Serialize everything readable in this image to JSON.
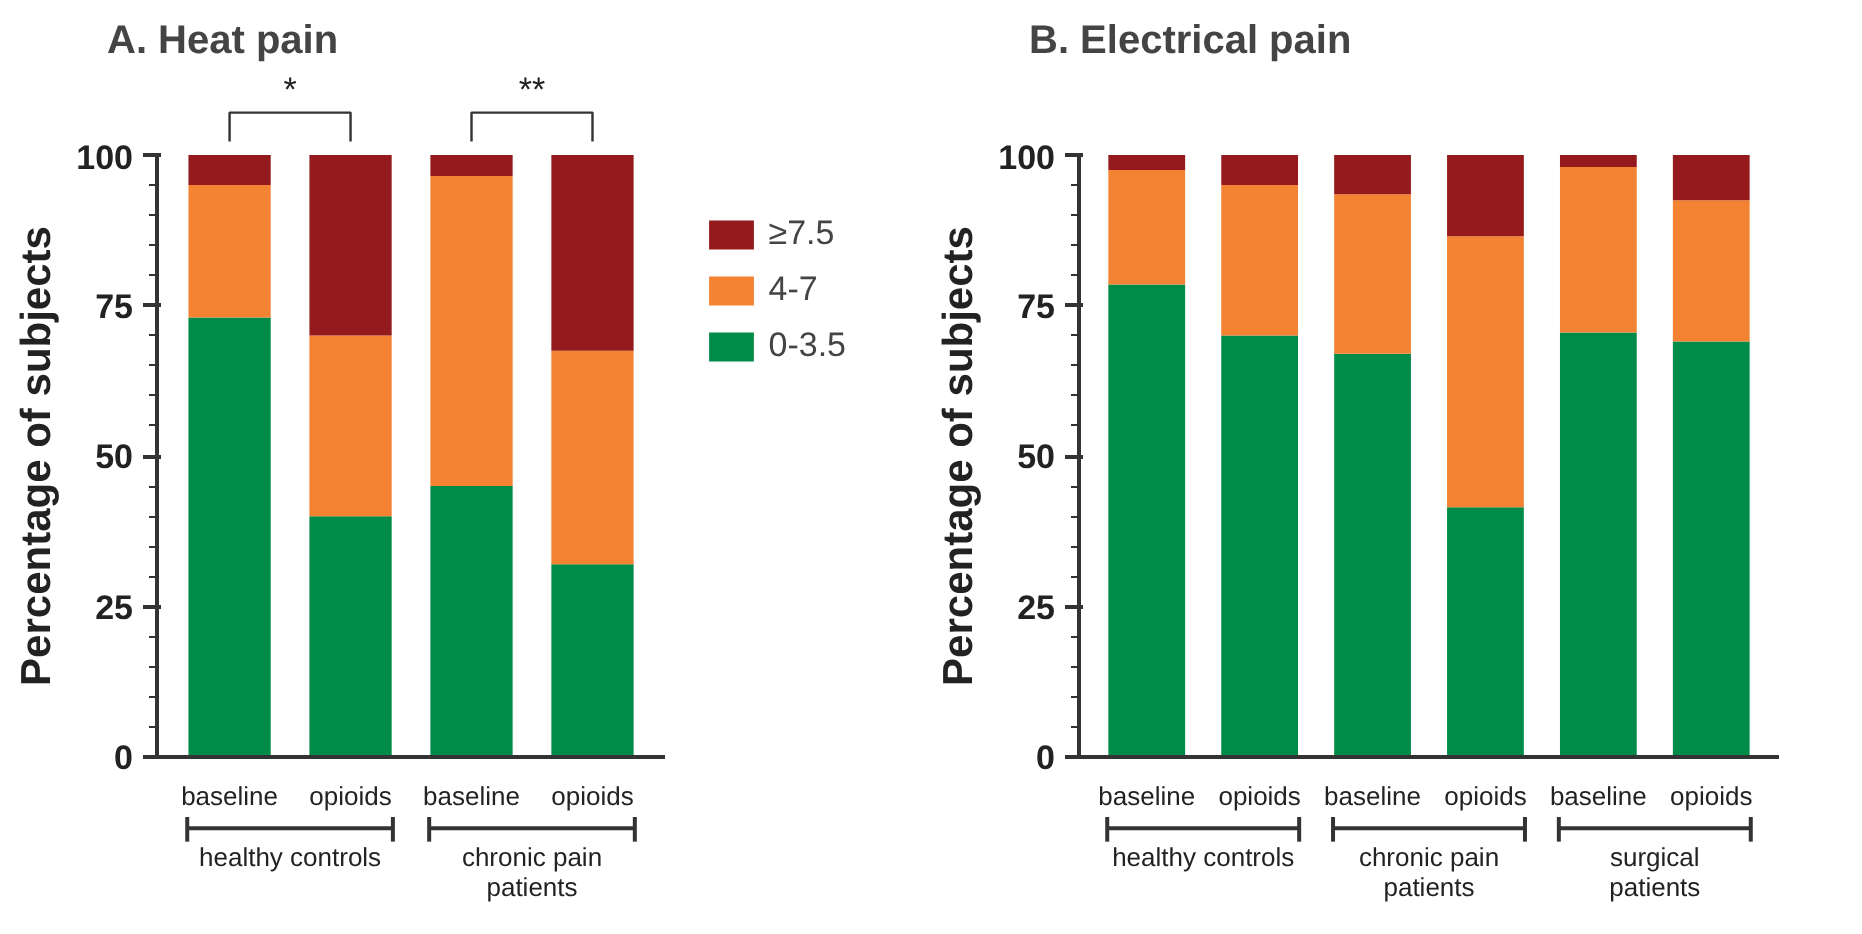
{
  "chart_data": [
    {
      "type": "bar",
      "title": "A.   Heat pain",
      "ylabel": "Percentage of subjects",
      "stacked": true,
      "categories": [
        "baseline",
        "opioids",
        "baseline",
        "opioids"
      ],
      "series": [
        {
          "name": "0-3.5",
          "color": "#008c48",
          "values": [
            73,
            40,
            45,
            32
          ]
        },
        {
          "name": "4-7",
          "color": "#f38233",
          "values": [
            22,
            30,
            51.5,
            35.5
          ]
        },
        {
          "name": "≥7.5",
          "color": "#941a1d",
          "values": [
            5,
            30,
            3.5,
            32.5
          ]
        }
      ],
      "ylim": [
        0,
        100
      ],
      "yticks": [
        0,
        25,
        50,
        75,
        100
      ],
      "grid": false,
      "legend": "right",
      "annotations": [
        "healthy controls",
        "chronic pain patients",
        "*",
        "**"
      ]
    },
    {
      "type": "bar",
      "title": "B.   Electrical pain",
      "ylabel": "Percentage of subjects",
      "stacked": true,
      "categories": [
        "baseline",
        "opioids",
        "baseline",
        "opioids",
        "baseline",
        "opioids"
      ],
      "series": [
        {
          "color": "#008c48",
          "values": [
            78.5,
            70,
            67,
            41.5,
            70.5,
            69
          ]
        },
        {
          "color": "#f38233",
          "values": [
            19,
            25,
            26.5,
            45,
            27.5,
            23.5
          ]
        },
        {
          "color": "#941a1d",
          "values": [
            2.5,
            5,
            6.5,
            13.5,
            2,
            7.5
          ]
        }
      ],
      "ylim": [
        0,
        100
      ],
      "yticks": [
        0,
        25,
        50,
        75,
        100
      ],
      "grid": false,
      "annotations": [
        "healthy controls",
        "chronic pain patients",
        "surgical patients"
      ]
    }
  ]
}
